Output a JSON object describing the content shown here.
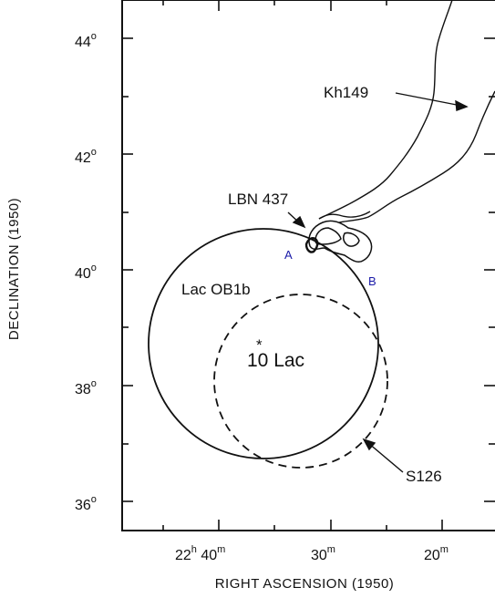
{
  "chart_data": {
    "type": "diagram",
    "xlabel": "RIGHT ASCENSION (1950)",
    "ylabel": "DECLINATION (1950)",
    "x_ticks": [
      {
        "value": 40,
        "main": "22",
        "sup1": "h",
        "main2": " 40",
        "sup2": "m"
      },
      {
        "value": 30,
        "main": "30",
        "sup1": "m",
        "main2": "",
        "sup2": ""
      },
      {
        "value": 20,
        "main": "20",
        "sup1": "m",
        "main2": "",
        "sup2": ""
      }
    ],
    "y_ticks": [
      {
        "value": 44,
        "main": "44",
        "sup": "o"
      },
      {
        "value": 42,
        "main": "42",
        "sup": "o"
      },
      {
        "value": 40,
        "main": "40",
        "sup": "o"
      },
      {
        "value": 38,
        "main": "38",
        "sup": "o"
      },
      {
        "value": 36,
        "main": "36",
        "sup": "o"
      }
    ],
    "annotations": {
      "kh149": "Kh149",
      "lbn437": "LBN 437",
      "lacob1b": "Lac OB1b",
      "star_name": "10 Lac",
      "star_symbol": "*",
      "s126": "S126",
      "point_a": "A",
      "point_b": "B"
    },
    "accent_color": "#1a1aa8"
  }
}
